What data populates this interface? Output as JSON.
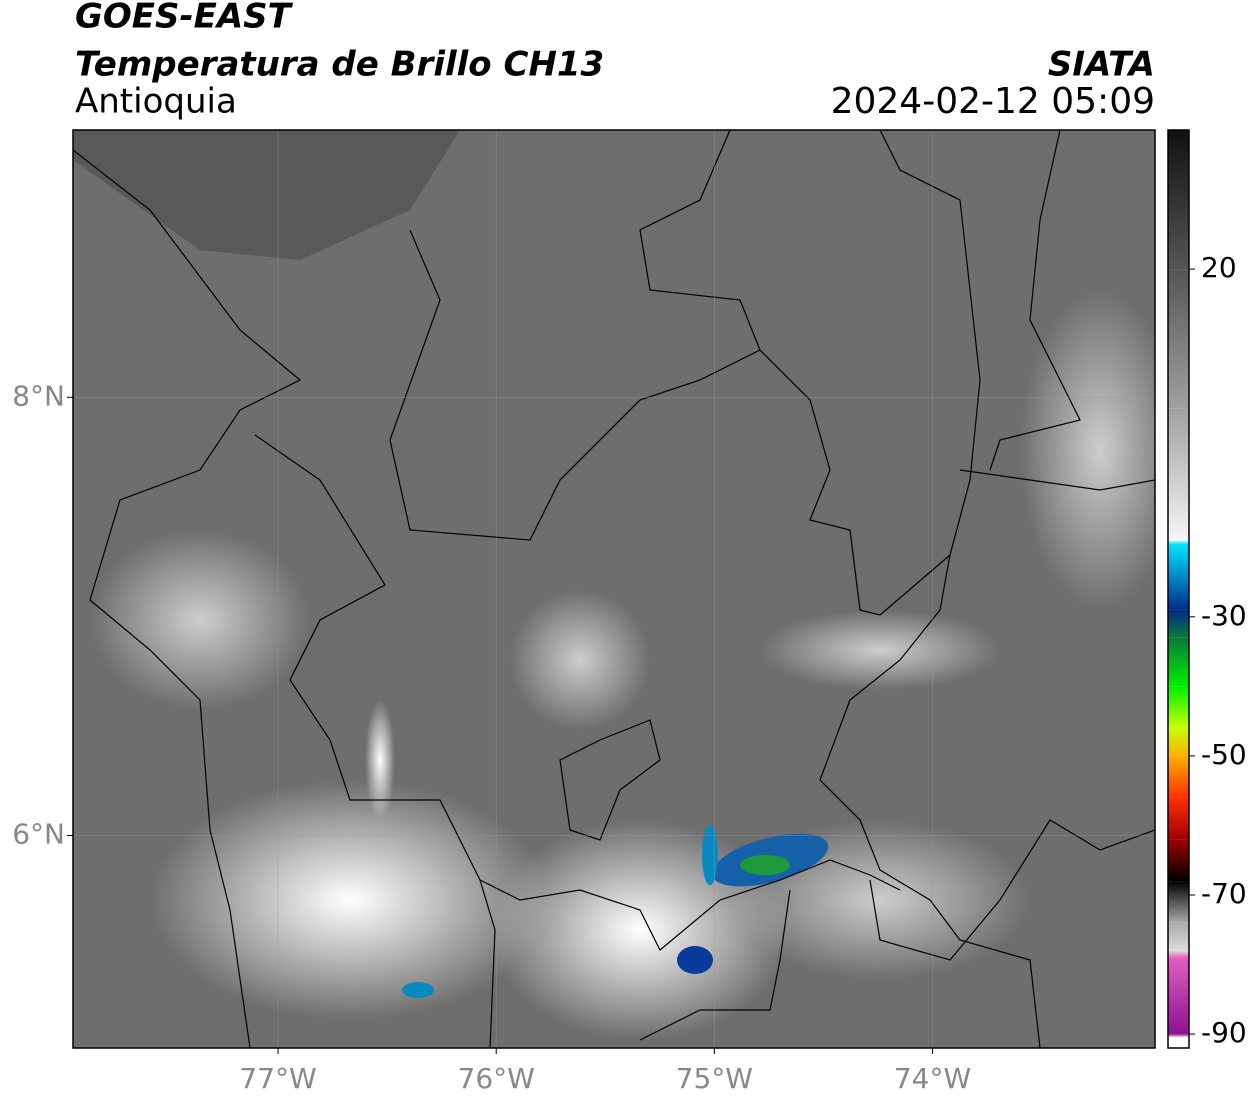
{
  "header": {
    "title": "GOES-EAST",
    "subtitle": "Temperatura de Brillo CH13",
    "region": "Antioquia",
    "source": "SIATA",
    "datetime": "2024-02-12 05:09"
  },
  "map": {
    "xlim": [
      -77.94,
      -72.98
    ],
    "ylim": [
      5.03,
      9.22
    ],
    "xticks": [
      {
        "value": -77,
        "label": "77°W"
      },
      {
        "value": -76,
        "label": "76°W"
      },
      {
        "value": -75,
        "label": "75°W"
      },
      {
        "value": -74,
        "label": "74°W"
      }
    ],
    "yticks": [
      {
        "value": 8,
        "label": "8°N"
      },
      {
        "value": 6,
        "label": "6°N"
      }
    ],
    "grid": true
  },
  "colorbar": {
    "clim": [
      -92,
      40
    ],
    "ticks": [
      20,
      -30,
      -50,
      -70,
      -90
    ],
    "stops": [
      {
        "value": 40,
        "color": "#111111"
      },
      {
        "value": 20,
        "color": "#555555"
      },
      {
        "value": 0,
        "color": "#a0a0a0"
      },
      {
        "value": -19,
        "color": "#f5f5f5"
      },
      {
        "value": -19.5,
        "color": "#00e5ff"
      },
      {
        "value": -29,
        "color": "#002a8c"
      },
      {
        "value": -33,
        "color": "#0a7a3a"
      },
      {
        "value": -40,
        "color": "#00ee00"
      },
      {
        "value": -46,
        "color": "#c8ff00"
      },
      {
        "value": -50,
        "color": "#ffb000"
      },
      {
        "value": -56,
        "color": "#ff3000"
      },
      {
        "value": -62,
        "color": "#a00000"
      },
      {
        "value": -68,
        "color": "#000000"
      },
      {
        "value": -74,
        "color": "#aaaaaa"
      },
      {
        "value": -78,
        "color": "#dddddd"
      },
      {
        "value": -79,
        "color": "#e060c0"
      },
      {
        "value": -90,
        "color": "#901090"
      },
      {
        "value": -90.5,
        "color": "#ffffff"
      },
      {
        "value": -92,
        "color": "#ffffff"
      }
    ]
  }
}
